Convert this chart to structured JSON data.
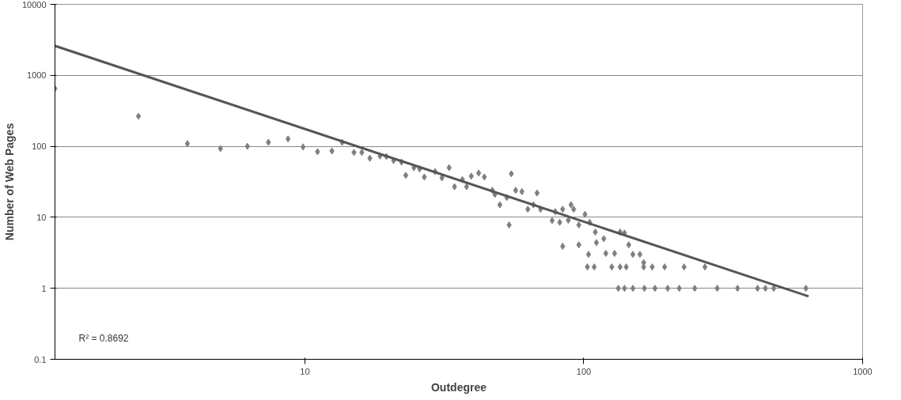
{
  "chart_data": {
    "type": "scatter",
    "xlabel": "Outdegree",
    "ylabel": "Number of Web Pages",
    "log": "xy",
    "grid": "y",
    "xlim": [
      1.27,
      1000
    ],
    "xticks": [
      10,
      100,
      1000
    ],
    "ylim": [
      0.1,
      10000
    ],
    "yticks": [
      0.1,
      1,
      10,
      100,
      1000,
      10000
    ],
    "annotations": [
      "R² = 0.8692"
    ],
    "series": [
      {
        "color": "#7f7f7f",
        "marker": "diamond",
        "x": [
          1.27,
          2.53,
          3.79,
          4.98,
          6.22,
          7.4,
          8.7,
          9.85,
          11.1,
          12.5,
          13.6,
          15,
          16,
          17.1,
          18.6,
          19.6,
          20.8,
          22.2,
          23,
          24.6,
          25.8,
          26.8,
          29.3,
          31,
          32.9,
          34.4,
          36.7,
          38,
          39.5,
          42,
          44,
          47,
          48,
          50,
          53,
          55,
          54,
          57,
          60,
          63,
          66,
          68,
          70,
          77,
          79,
          82,
          84,
          84,
          88,
          90,
          92,
          96,
          96,
          101,
          103,
          104,
          105,
          109,
          110,
          111,
          118,
          120,
          126,
          129,
          133,
          135,
          135,
          140,
          142,
          145,
          150,
          159,
          164,
          164,
          176,
          195,
          229,
          272,
          140,
          150,
          165,
          180,
          200,
          220,
          250,
          301,
          356,
          420,
          448,
          480,
          626
        ],
        "values": [
          650,
          265,
          109,
          93,
          100,
          114,
          127,
          98,
          84,
          86,
          114,
          82,
          82,
          68,
          73,
          72,
          63,
          60,
          39,
          50,
          48,
          37,
          44,
          36,
          50,
          27,
          34,
          27,
          38,
          42,
          37,
          24,
          21,
          15,
          19,
          41,
          7.8,
          24,
          23,
          13,
          15,
          22,
          13,
          9,
          12,
          8.5,
          13,
          3.9,
          9.1,
          15,
          13,
          7.8,
          4.1,
          11,
          2,
          3,
          8.5,
          2,
          6.2,
          4.4,
          5,
          3.1,
          2,
          3.1,
          1,
          6.2,
          2,
          6,
          2,
          4.1,
          3,
          3,
          2.3,
          2,
          2,
          2,
          2,
          2,
          1,
          1,
          1,
          1,
          1,
          1,
          1,
          1,
          1,
          1,
          1,
          1,
          1
        ]
      },
      {
        "type": "line",
        "marker": "none",
        "color": "#555555",
        "x": [
          1.27,
          640
        ],
        "values": [
          2600,
          0.77
        ]
      }
    ]
  }
}
